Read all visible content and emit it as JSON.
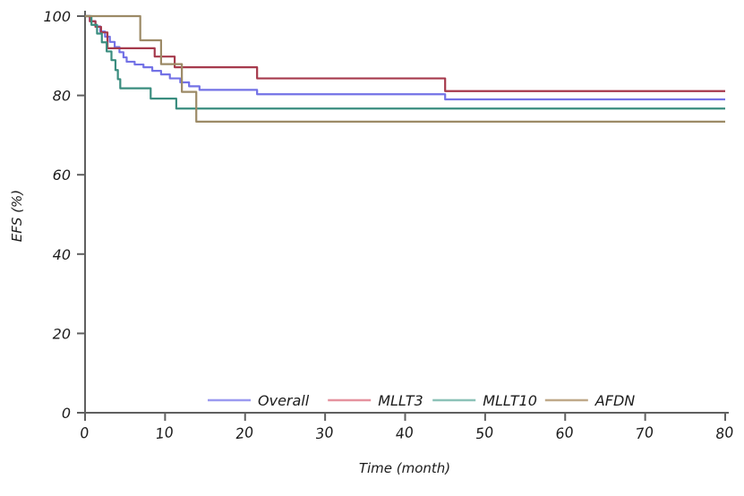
{
  "chart_data": {
    "type": "line",
    "subtype": "kaplan-meier-step",
    "title": "",
    "xlabel": "Time (month)",
    "ylabel": "EFS (%)",
    "xlim": [
      0,
      80
    ],
    "ylim": [
      0,
      100
    ],
    "xticks": [
      0,
      10,
      20,
      30,
      40,
      50,
      60,
      70,
      80
    ],
    "yticks": [
      0,
      20,
      40,
      60,
      80,
      100
    ],
    "grid": false,
    "legend_position": "bottom-center-inside",
    "axis_color": "#606060",
    "tick_label_color": "#1c1c1c",
    "series": [
      {
        "name": "Overall",
        "color": "#7372e6",
        "legend_color": "#9b9af0",
        "points": [
          [
            0,
            100
          ],
          [
            0.6,
            98.7
          ],
          [
            1.3,
            97.4
          ],
          [
            1.9,
            96.1
          ],
          [
            2.5,
            94.8
          ],
          [
            3.1,
            93.5
          ],
          [
            3.7,
            92.2
          ],
          [
            4.3,
            90.9
          ],
          [
            4.8,
            89.6
          ],
          [
            5.2,
            88.5
          ],
          [
            6.2,
            87.8
          ],
          [
            7.3,
            87.1
          ],
          [
            8.4,
            86.2
          ],
          [
            9.5,
            85.3
          ],
          [
            10.6,
            84.3
          ],
          [
            11.9,
            83.3
          ],
          [
            13.0,
            82.3
          ],
          [
            14.3,
            81.4
          ],
          [
            21.5,
            80.3
          ],
          [
            45.0,
            79.0
          ]
        ],
        "final_value": 79.0
      },
      {
        "name": "MLLT3",
        "color": "#a63a4c",
        "legend_color": "#e5939f",
        "points": [
          [
            0,
            100
          ],
          [
            0.6,
            98.7
          ],
          [
            1.3,
            97.3
          ],
          [
            2.0,
            95.9
          ],
          [
            2.8,
            91.9
          ],
          [
            8.7,
            89.8
          ],
          [
            11.2,
            87.1
          ],
          [
            21.5,
            84.3
          ],
          [
            45.0,
            81.1
          ]
        ],
        "final_value": 81.1
      },
      {
        "name": "MLLT10",
        "color": "#3a8d7f",
        "legend_color": "#8cc2b8",
        "points": [
          [
            0,
            100
          ],
          [
            0.8,
            97.8
          ],
          [
            1.5,
            95.6
          ],
          [
            2.1,
            93.4
          ],
          [
            2.7,
            91.1
          ],
          [
            3.3,
            88.9
          ],
          [
            3.8,
            86.4
          ],
          [
            4.1,
            84.1
          ],
          [
            4.4,
            81.8
          ],
          [
            8.2,
            79.2
          ],
          [
            11.4,
            76.7
          ]
        ],
        "final_value": 76.7
      },
      {
        "name": "AFDN",
        "color": "#9c8a66",
        "legend_color": "#bfa98a",
        "points": [
          [
            0,
            100
          ],
          [
            6.9,
            93.9
          ],
          [
            9.5,
            87.9
          ],
          [
            12.1,
            80.9
          ],
          [
            13.9,
            73.4
          ]
        ],
        "final_value": 73.4
      }
    ]
  }
}
